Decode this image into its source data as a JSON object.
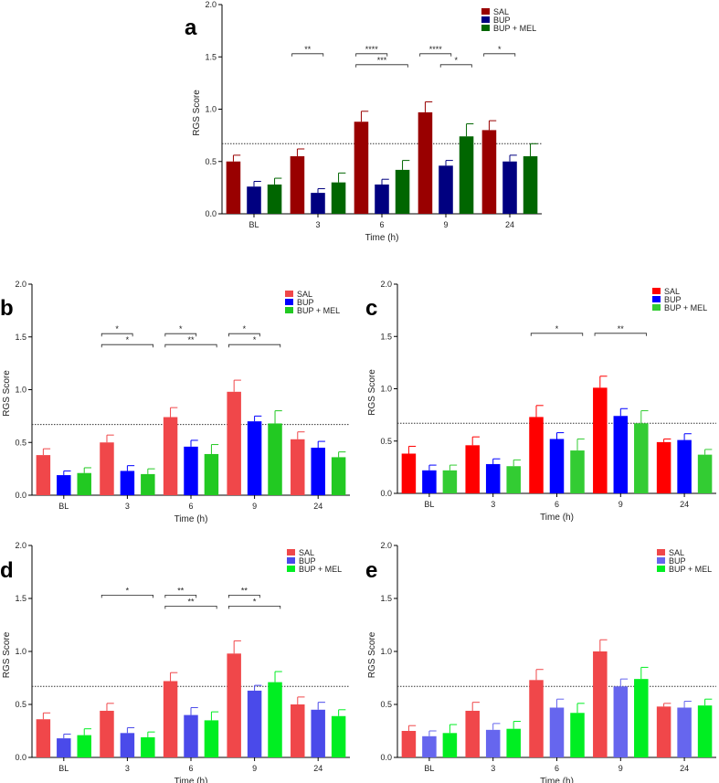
{
  "chart_data": [
    {
      "panel": "a",
      "type": "bar",
      "categories": [
        "BL",
        "3",
        "6",
        "9",
        "24"
      ],
      "xlabel": "Time (h)",
      "ylabel": "RGS Score",
      "ylim": [
        0,
        2.0
      ],
      "yticks": [
        "0.0",
        "0.5",
        "1.0",
        "1.5",
        "2.0"
      ],
      "reference_line": 0.67,
      "legend_position": "top-right",
      "series": [
        {
          "name": "SAL",
          "color": "#990000",
          "values": [
            0.5,
            0.55,
            0.88,
            0.97,
            0.8
          ],
          "errors": [
            0.06,
            0.07,
            0.1,
            0.1,
            0.09
          ]
        },
        {
          "name": "BUP",
          "color": "#000080",
          "values": [
            0.26,
            0.2,
            0.28,
            0.46,
            0.5
          ],
          "errors": [
            0.05,
            0.04,
            0.05,
            0.05,
            0.06
          ]
        },
        {
          "name": "BUP + MEL",
          "color": "#006600",
          "values": [
            0.28,
            0.3,
            0.42,
            0.74,
            0.55
          ],
          "errors": [
            0.06,
            0.09,
            0.09,
            0.12,
            0.12
          ]
        }
      ],
      "significance": [
        {
          "category": "3",
          "from_series": "SAL",
          "to_series": "BUP",
          "label": "**",
          "level": 0
        },
        {
          "category": "6",
          "from_series": "SAL",
          "to_series": "BUP",
          "label": "****",
          "level": 0
        },
        {
          "category": "6",
          "from_series": "SAL",
          "to_series": "BUP + MEL",
          "label": "***",
          "level": 1
        },
        {
          "category": "9",
          "from_series": "SAL",
          "to_series": "BUP",
          "label": "****",
          "level": 0
        },
        {
          "category": "9",
          "from_series": "BUP",
          "to_series": "BUP + MEL",
          "label": "*",
          "level": 1
        },
        {
          "category": "24",
          "from_series": "SAL",
          "to_series": "BUP",
          "label": "*",
          "level": 0
        }
      ]
    },
    {
      "panel": "b",
      "type": "bar",
      "categories": [
        "BL",
        "3",
        "6",
        "9",
        "24"
      ],
      "xlabel": "Time (h)",
      "ylabel": "RGS Score",
      "ylim": [
        0,
        2.0
      ],
      "yticks": [
        "0.0",
        "0.5",
        "1.0",
        "1.5",
        "2.0"
      ],
      "reference_line": 0.67,
      "legend_position": "top-right",
      "series": [
        {
          "name": "SAL",
          "color": "#f0474a",
          "values": [
            0.38,
            0.5,
            0.74,
            0.98,
            0.53
          ],
          "errors": [
            0.06,
            0.07,
            0.09,
            0.11,
            0.07
          ]
        },
        {
          "name": "BUP",
          "color": "#0000ff",
          "values": [
            0.19,
            0.23,
            0.46,
            0.7,
            0.45
          ],
          "errors": [
            0.04,
            0.05,
            0.06,
            0.05,
            0.06
          ]
        },
        {
          "name": "BUP + MEL",
          "color": "#22c922",
          "values": [
            0.21,
            0.2,
            0.39,
            0.68,
            0.36
          ],
          "errors": [
            0.05,
            0.05,
            0.09,
            0.12,
            0.05
          ]
        }
      ],
      "significance": [
        {
          "category": "3",
          "from_series": "SAL",
          "to_series": "BUP",
          "label": "*",
          "level": 0
        },
        {
          "category": "3",
          "from_series": "SAL",
          "to_series": "BUP + MEL",
          "label": "*",
          "level": 1
        },
        {
          "category": "6",
          "from_series": "SAL",
          "to_series": "BUP",
          "label": "*",
          "level": 0
        },
        {
          "category": "6",
          "from_series": "SAL",
          "to_series": "BUP + MEL",
          "label": "**",
          "level": 1
        },
        {
          "category": "9",
          "from_series": "SAL",
          "to_series": "BUP",
          "label": "*",
          "level": 0
        },
        {
          "category": "9",
          "from_series": "SAL",
          "to_series": "BUP + MEL",
          "label": "*",
          "level": 1
        }
      ]
    },
    {
      "panel": "c",
      "type": "bar",
      "categories": [
        "BL",
        "3",
        "6",
        "9",
        "24"
      ],
      "xlabel": "Time (h)",
      "ylabel": "RGS Score",
      "ylim": [
        0,
        2.0
      ],
      "yticks": [
        "0.0",
        "0.5",
        "1.0",
        "1.5",
        "2.0"
      ],
      "reference_line": 0.67,
      "legend_position": "top-right",
      "series": [
        {
          "name": "SAL",
          "color": "#ff0000",
          "values": [
            0.38,
            0.46,
            0.73,
            1.01,
            0.49
          ],
          "errors": [
            0.07,
            0.08,
            0.11,
            0.11,
            0.03
          ]
        },
        {
          "name": "BUP",
          "color": "#0000ff",
          "values": [
            0.22,
            0.28,
            0.52,
            0.74,
            0.51
          ],
          "errors": [
            0.05,
            0.05,
            0.06,
            0.07,
            0.06
          ]
        },
        {
          "name": "BUP + MEL",
          "color": "#33cc33",
          "values": [
            0.22,
            0.26,
            0.41,
            0.67,
            0.37
          ],
          "errors": [
            0.05,
            0.06,
            0.11,
            0.12,
            0.05
          ]
        }
      ],
      "significance": [
        {
          "category": "6",
          "from_series": "SAL",
          "to_series": "BUP + MEL",
          "label": "*",
          "level": 0
        },
        {
          "category": "9",
          "from_series": "SAL",
          "to_series": "BUP + MEL",
          "label": "**",
          "level": 0
        }
      ]
    },
    {
      "panel": "d",
      "type": "bar",
      "categories": [
        "BL",
        "3",
        "6",
        "9",
        "24"
      ],
      "xlabel": "Time (h)",
      "ylabel": "RGS Score",
      "ylim": [
        0,
        2.0
      ],
      "yticks": [
        "0.0",
        "0.5",
        "1.0",
        "1.5",
        "2.0"
      ],
      "reference_line": 0.67,
      "legend_position": "top-right",
      "series": [
        {
          "name": "SAL",
          "color": "#f0474a",
          "values": [
            0.36,
            0.44,
            0.72,
            0.98,
            0.5
          ],
          "errors": [
            0.06,
            0.07,
            0.08,
            0.12,
            0.07
          ]
        },
        {
          "name": "BUP",
          "color": "#4a4aea",
          "values": [
            0.18,
            0.23,
            0.4,
            0.63,
            0.45
          ],
          "errors": [
            0.04,
            0.05,
            0.07,
            0.05,
            0.07
          ]
        },
        {
          "name": "BUP + MEL",
          "color": "#00ee22",
          "values": [
            0.21,
            0.19,
            0.35,
            0.71,
            0.39
          ],
          "errors": [
            0.06,
            0.05,
            0.08,
            0.1,
            0.06
          ]
        }
      ],
      "significance": [
        {
          "category": "3",
          "from_series": "SAL",
          "to_series": "BUP + MEL",
          "label": "*",
          "level": 0
        },
        {
          "category": "6",
          "from_series": "SAL",
          "to_series": "BUP",
          "label": "**",
          "level": 0
        },
        {
          "category": "6",
          "from_series": "SAL",
          "to_series": "BUP + MEL",
          "label": "**",
          "level": 1
        },
        {
          "category": "9",
          "from_series": "SAL",
          "to_series": "BUP",
          "label": "**",
          "level": 0
        },
        {
          "category": "9",
          "from_series": "SAL",
          "to_series": "BUP + MEL",
          "label": "*",
          "level": 1
        }
      ]
    },
    {
      "panel": "e",
      "type": "bar",
      "categories": [
        "BL",
        "3",
        "6",
        "9",
        "24"
      ],
      "xlabel": "Time (h)",
      "ylabel": "RGS Score",
      "ylim": [
        0,
        2.0
      ],
      "yticks": [
        "0.0",
        "0.5",
        "1.0",
        "1.5",
        "2.0"
      ],
      "reference_line": 0.67,
      "legend_position": "top-right",
      "series": [
        {
          "name": "SAL",
          "color": "#f0474a",
          "values": [
            0.25,
            0.44,
            0.73,
            1.0,
            0.48
          ],
          "errors": [
            0.05,
            0.08,
            0.1,
            0.11,
            0.03
          ]
        },
        {
          "name": "BUP",
          "color": "#6666ee",
          "values": [
            0.2,
            0.26,
            0.47,
            0.67,
            0.47
          ],
          "errors": [
            0.05,
            0.06,
            0.08,
            0.07,
            0.06
          ]
        },
        {
          "name": "BUP + MEL",
          "color": "#00ee22",
          "values": [
            0.23,
            0.27,
            0.42,
            0.74,
            0.49
          ],
          "errors": [
            0.08,
            0.07,
            0.09,
            0.11,
            0.06
          ]
        }
      ],
      "significance": []
    }
  ]
}
